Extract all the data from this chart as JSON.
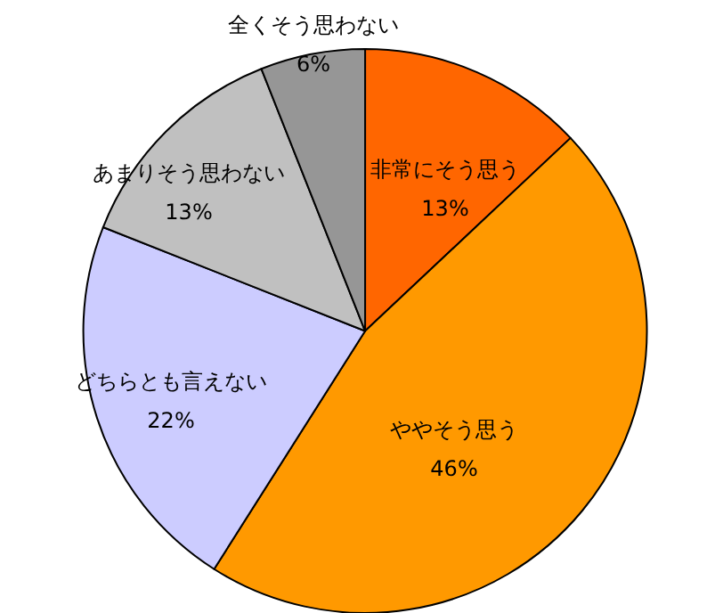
{
  "chart_data": {
    "type": "pie",
    "categories": [
      "非常にそう思う",
      "ややそう思う",
      "どちらとも言えない",
      "あまりそう思わない",
      "全くそう思わない"
    ],
    "values": [
      13,
      46,
      22,
      13,
      6
    ],
    "value_labels": [
      "13%",
      "46%",
      "22%",
      "13%",
      "6%"
    ],
    "colors": [
      "#ff6600",
      "#ff9900",
      "#ccccff",
      "#c0c0c0",
      "#969696"
    ]
  }
}
